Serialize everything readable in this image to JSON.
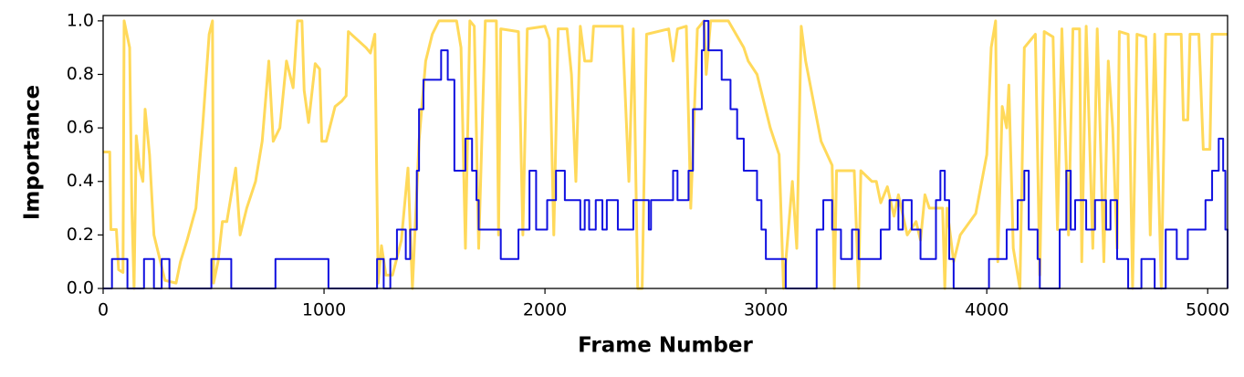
{
  "chart_data": {
    "type": "line",
    "xlabel": "Frame Number",
    "ylabel": "Importance",
    "xlim": [
      0,
      5090
    ],
    "ylim": [
      0,
      1.02
    ],
    "xticks": [
      0,
      1000,
      2000,
      3000,
      4000,
      5000
    ],
    "yticks": [
      {
        "value": 0,
        "label": "0.0"
      },
      {
        "value": 0.2,
        "label": "0.2"
      },
      {
        "value": 0.4,
        "label": "0.4"
      },
      {
        "value": 0.6,
        "label": "0.6"
      },
      {
        "value": 0.8,
        "label": "0.8"
      },
      {
        "value": 1,
        "label": "1.0"
      }
    ],
    "series": [
      {
        "color": "#ffd95a",
        "drawstyle": "default",
        "x": [
          0,
          30,
          35,
          60,
          70,
          90,
          95,
          120,
          130,
          140,
          150,
          165,
          180,
          190,
          210,
          230,
          280,
          330,
          350,
          380,
          420,
          450,
          480,
          495,
          500,
          520,
          540,
          560,
          580,
          600,
          620,
          650,
          690,
          720,
          750,
          770,
          800,
          830,
          860,
          880,
          900,
          910,
          930,
          960,
          980,
          990,
          1010,
          1050,
          1080,
          1100,
          1110,
          1190,
          1210,
          1230,
          1245,
          1260,
          1280,
          1310,
          1350,
          1380,
          1400,
          1430,
          1460,
          1490,
          1520,
          1600,
          1620,
          1640,
          1660,
          1680,
          1700,
          1730,
          1780,
          1790,
          1800,
          1880,
          1900,
          1920,
          2000,
          2020,
          2040,
          2060,
          2100,
          2120,
          2140,
          2160,
          2180,
          2210,
          2220,
          2350,
          2380,
          2400,
          2420,
          2440,
          2460,
          2560,
          2580,
          2600,
          2640,
          2660,
          2690,
          2720,
          2730,
          2750,
          2830,
          2900,
          2920,
          2960,
          3020,
          3060,
          3080,
          3120,
          3140,
          3160,
          3180,
          3250,
          3300,
          3310,
          3320,
          3400,
          3420,
          3430,
          3480,
          3500,
          3520,
          3550,
          3580,
          3600,
          3640,
          3680,
          3700,
          3720,
          3740,
          3800,
          3810,
          3820,
          3850,
          3880,
          3950,
          4000,
          4020,
          4040,
          4050,
          4070,
          4090,
          4100,
          4120,
          4150,
          4170,
          4200,
          4220,
          4240,
          4260,
          4300,
          4320,
          4340,
          4370,
          4390,
          4420,
          4430,
          4450,
          4480,
          4500,
          4530,
          4550,
          4570,
          4590,
          4600,
          4640,
          4660,
          4680,
          4720,
          4740,
          4760,
          4790,
          4810,
          4880,
          4890,
          4910,
          4920,
          4960,
          4980,
          5010,
          5020,
          5090
        ],
        "values": [
          0.51,
          0.51,
          0.22,
          0.22,
          0.07,
          0.06,
          1.0,
          0.9,
          0.3,
          0.0,
          0.57,
          0.45,
          0.4,
          0.67,
          0.5,
          0.2,
          0.03,
          0.02,
          0.1,
          0.18,
          0.3,
          0.6,
          0.95,
          1.0,
          0.02,
          0.1,
          0.25,
          0.25,
          0.35,
          0.45,
          0.2,
          0.3,
          0.4,
          0.55,
          0.85,
          0.55,
          0.6,
          0.85,
          0.75,
          1.0,
          1.0,
          0.74,
          0.62,
          0.84,
          0.82,
          0.55,
          0.55,
          0.68,
          0.7,
          0.72,
          0.96,
          0.9,
          0.88,
          0.95,
          0.02,
          0.16,
          0.05,
          0.05,
          0.18,
          0.45,
          0.0,
          0.55,
          0.85,
          0.95,
          1.0,
          1.0,
          0.9,
          0.15,
          1.0,
          0.98,
          0.15,
          1.0,
          1.0,
          0.2,
          0.97,
          0.96,
          0.2,
          0.97,
          0.98,
          0.93,
          0.2,
          0.97,
          0.97,
          0.8,
          0.4,
          0.98,
          0.85,
          0.85,
          0.98,
          0.98,
          0.4,
          0.97,
          0.0,
          0.0,
          0.95,
          0.97,
          0.85,
          0.97,
          0.98,
          0.3,
          0.97,
          1.0,
          0.8,
          1.0,
          1.0,
          0.9,
          0.85,
          0.8,
          0.6,
          0.5,
          0.0,
          0.4,
          0.15,
          0.98,
          0.85,
          0.55,
          0.46,
          0.0,
          0.44,
          0.44,
          0.0,
          0.44,
          0.4,
          0.4,
          0.32,
          0.38,
          0.27,
          0.35,
          0.2,
          0.25,
          0.18,
          0.35,
          0.3,
          0.3,
          0.0,
          0.3,
          0.1,
          0.2,
          0.28,
          0.5,
          0.9,
          1.0,
          0.1,
          0.68,
          0.6,
          0.76,
          0.15,
          0.0,
          0.9,
          0.93,
          0.95,
          0.05,
          0.96,
          0.94,
          0.22,
          0.97,
          0.2,
          0.97,
          0.97,
          0.1,
          0.98,
          0.15,
          0.97,
          0.1,
          0.85,
          0.6,
          0.15,
          0.96,
          0.95,
          0.0,
          0.95,
          0.94,
          0.2,
          0.95,
          0.0,
          0.95,
          0.95,
          0.63,
          0.63,
          0.95,
          0.95,
          0.52,
          0.52,
          0.95,
          0.95
        ]
      },
      {
        "color": "#1010e0",
        "drawstyle": "steps-post",
        "x": [
          0,
          40,
          110,
          185,
          230,
          265,
          300,
          490,
          580,
          780,
          1020,
          1240,
          1270,
          1300,
          1330,
          1370,
          1390,
          1420,
          1430,
          1450,
          1530,
          1560,
          1590,
          1640,
          1670,
          1690,
          1700,
          1800,
          1880,
          1930,
          1960,
          2010,
          2050,
          2090,
          2160,
          2180,
          2200,
          2230,
          2260,
          2280,
          2330,
          2400,
          2470,
          2480,
          2580,
          2600,
          2650,
          2670,
          2710,
          2720,
          2740,
          2800,
          2840,
          2870,
          2900,
          2960,
          2980,
          3000,
          3090,
          3230,
          3260,
          3300,
          3340,
          3390,
          3420,
          3520,
          3560,
          3600,
          3620,
          3660,
          3700,
          3770,
          3790,
          3810,
          3830,
          3850,
          4010,
          4090,
          4140,
          4170,
          4190,
          4230,
          4240,
          4330,
          4360,
          4380,
          4400,
          4450,
          4490,
          4540,
          4560,
          4590,
          4640,
          4700,
          4760,
          4810,
          4860,
          4910,
          4990,
          5020,
          5050,
          5070,
          5080,
          5090
        ],
        "values": [
          0,
          0.11,
          0,
          0.11,
          0,
          0.11,
          0,
          0.11,
          0,
          0.11,
          0,
          0.11,
          0,
          0.11,
          0.22,
          0.11,
          0.22,
          0.44,
          0.67,
          0.78,
          0.89,
          0.78,
          0.44,
          0.56,
          0.44,
          0.33,
          0.22,
          0.11,
          0.22,
          0.44,
          0.22,
          0.33,
          0.44,
          0.33,
          0.22,
          0.33,
          0.22,
          0.33,
          0.22,
          0.33,
          0.22,
          0.33,
          0.22,
          0.33,
          0.44,
          0.33,
          0.44,
          0.67,
          0.89,
          1,
          0.89,
          0.78,
          0.67,
          0.56,
          0.44,
          0.33,
          0.22,
          0.11,
          0,
          0.22,
          0.33,
          0.22,
          0.11,
          0.22,
          0.11,
          0.22,
          0.33,
          0.22,
          0.33,
          0.22,
          0.11,
          0.33,
          0.44,
          0.33,
          0.11,
          0,
          0.11,
          0.22,
          0.33,
          0.44,
          0.22,
          0.11,
          0,
          0.22,
          0.44,
          0.22,
          0.33,
          0.22,
          0.33,
          0.22,
          0.33,
          0.11,
          0,
          0.11,
          0,
          0.22,
          0.11,
          0.22,
          0.33,
          0.44,
          0.56,
          0.44,
          0.22,
          0
        ]
      }
    ]
  }
}
